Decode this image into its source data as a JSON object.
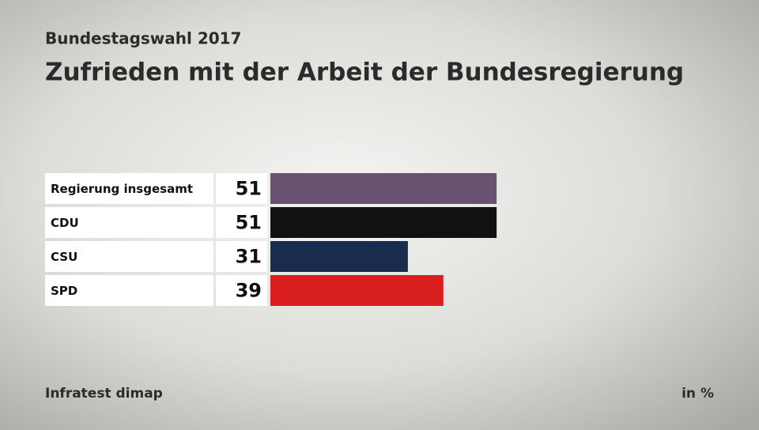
{
  "chart_data": {
    "type": "bar",
    "orientation": "horizontal",
    "subtitle": "Bundestagswahl 2017",
    "title": "Zufrieden mit der Arbeit der Bundesregierung",
    "categories": [
      "Regierung insgesamt",
      "CDU",
      "CSU",
      "SPD"
    ],
    "values": [
      51,
      51,
      31,
      39
    ],
    "colors": [
      "#67536f",
      "#111111",
      "#1a2c4d",
      "#d91e1e"
    ],
    "source": "Infratest dimap",
    "unit": "in %"
  }
}
